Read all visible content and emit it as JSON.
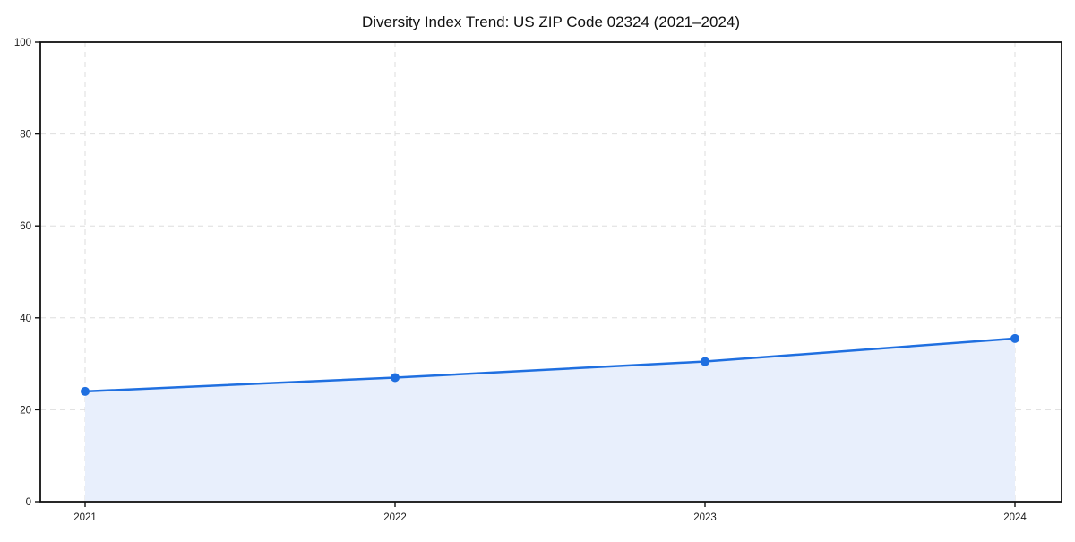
{
  "figure": {
    "background_color": "#ffffff"
  },
  "chart_data": {
    "type": "area",
    "title": "Diversity Index Trend: US ZIP Code 02324 (2021–2024)",
    "x": [
      "2021",
      "2022",
      "2023",
      "2024"
    ],
    "series": [
      {
        "name": "Diversity Index",
        "values": [
          24,
          27,
          30.5,
          35.5
        ]
      }
    ],
    "xlabel": "",
    "ylabel": "",
    "ylim": [
      0,
      100
    ],
    "yticks": [
      0,
      20,
      40,
      60,
      80,
      100
    ],
    "grid": "dashed-both-axes",
    "legend_position": "none",
    "line_color": "#1f6fe0",
    "marker_color": "#1f6fe0",
    "fill_color": "#e8effc",
    "grid_color": "#dedede",
    "spine_color": "#111111",
    "text_color": "#1a1a1a"
  }
}
